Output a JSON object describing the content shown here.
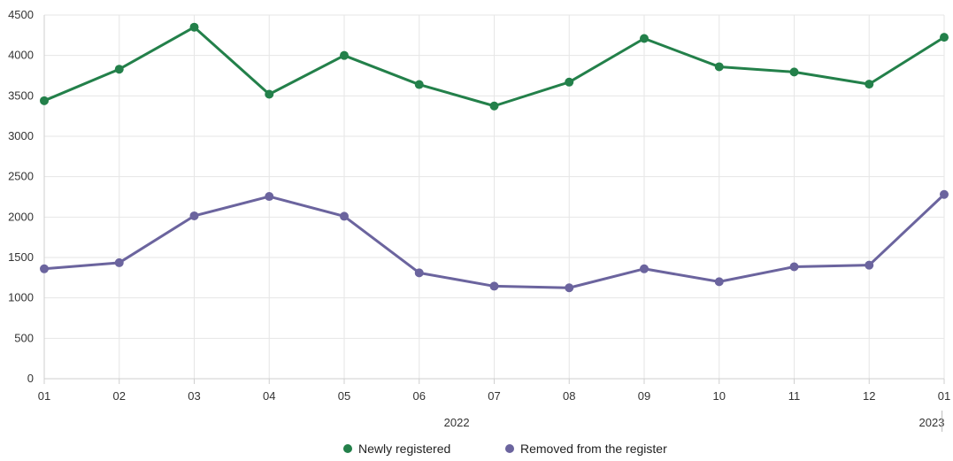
{
  "chart_data": {
    "type": "line",
    "categories": [
      "01",
      "02",
      "03",
      "04",
      "05",
      "06",
      "07",
      "08",
      "09",
      "10",
      "11",
      "12",
      "01"
    ],
    "year_groups": [
      {
        "label": "2022",
        "start_index": 0,
        "end_index": 11
      },
      {
        "label": "2023",
        "start_index": 12,
        "end_index": 12
      }
    ],
    "ylim": [
      0,
      4500
    ],
    "yticks": [
      0,
      500,
      1000,
      1500,
      2000,
      2500,
      3000,
      3500,
      4000,
      4500
    ],
    "grid": true,
    "legend_position": "bottom-center",
    "series": [
      {
        "name": "Newly registered",
        "color": "#23804a",
        "values": [
          3440,
          3830,
          4350,
          3520,
          4000,
          3640,
          3375,
          3670,
          4210,
          3860,
          3795,
          3645,
          4225
        ]
      },
      {
        "name": "Removed from the register",
        "color": "#6b649e",
        "values": [
          1360,
          1435,
          2015,
          2255,
          2010,
          1310,
          1145,
          1125,
          1360,
          1200,
          1385,
          1405,
          2280
        ]
      }
    ]
  }
}
